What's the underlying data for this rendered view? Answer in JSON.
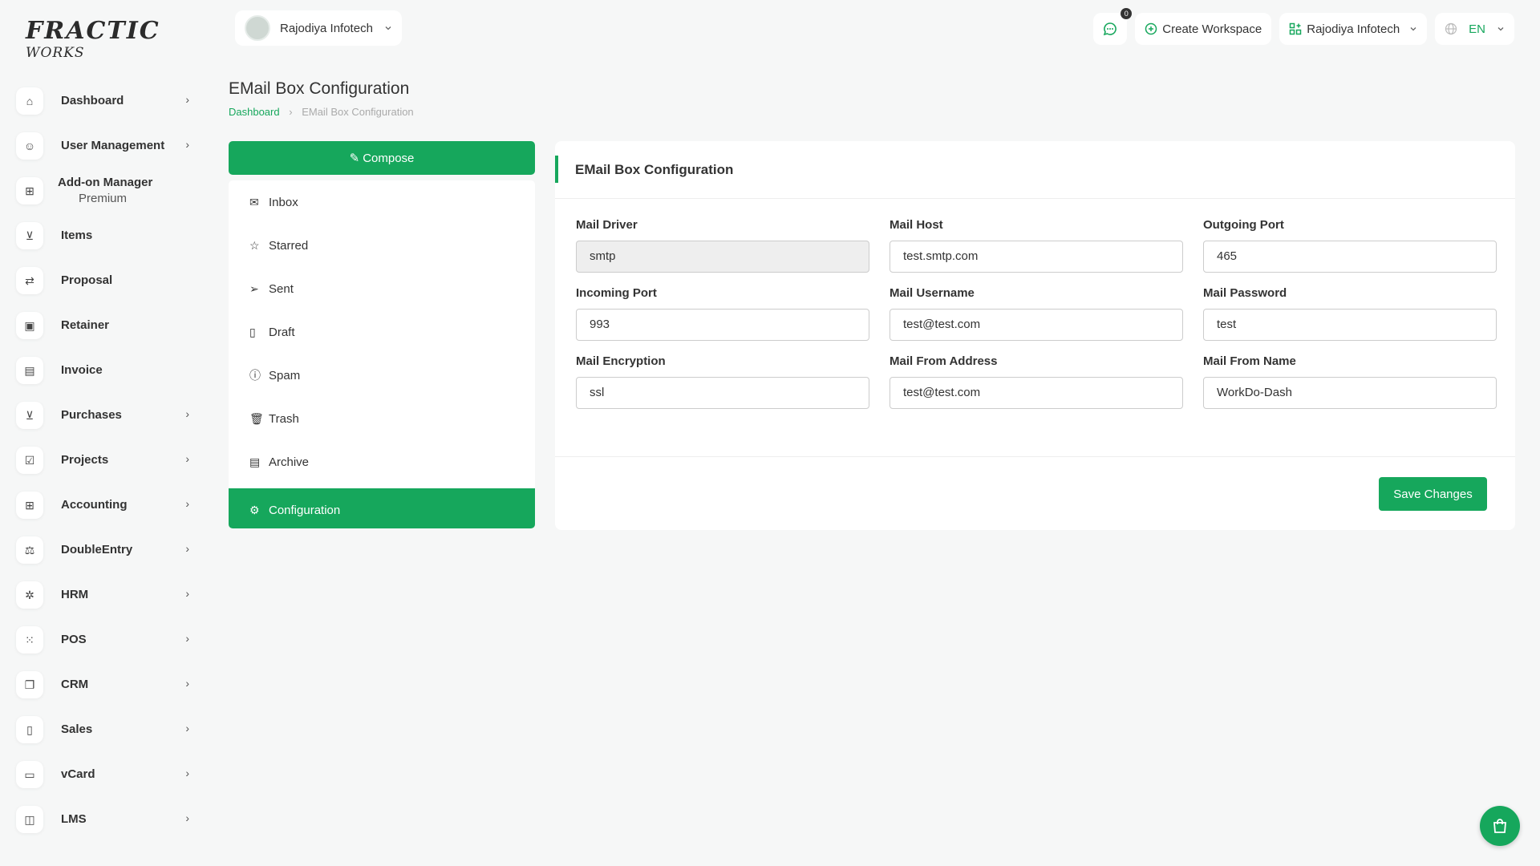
{
  "brand": {
    "logo_line1": "FRACTIC",
    "logo_line2": "WORKS",
    "accent": "#16a75c"
  },
  "header": {
    "workspace": "Rajodiya Infotech",
    "notification_count": "0",
    "create_workspace": "Create Workspace",
    "user": "Rajodiya Infotech",
    "language": "EN"
  },
  "sidebar": {
    "items": [
      {
        "label": "Dashboard",
        "icon": "home-icon",
        "chevron": true
      },
      {
        "label": "User Management",
        "icon": "users-icon",
        "chevron": true
      },
      {
        "label": "Add-on Manager",
        "sub": "Premium",
        "icon": "grid-icon",
        "chevron": false
      },
      {
        "label": "Items",
        "icon": "cart-icon",
        "chevron": false
      },
      {
        "label": "Proposal",
        "icon": "proposal-icon",
        "chevron": false
      },
      {
        "label": "Retainer",
        "icon": "retainer-icon",
        "chevron": false
      },
      {
        "label": "Invoice",
        "icon": "invoice-icon",
        "chevron": false
      },
      {
        "label": "Purchases",
        "icon": "cart-icon",
        "chevron": true
      },
      {
        "label": "Projects",
        "icon": "check-square-icon",
        "chevron": true
      },
      {
        "label": "Accounting",
        "icon": "grid-icon",
        "chevron": true
      },
      {
        "label": "DoubleEntry",
        "icon": "scale-icon",
        "chevron": true
      },
      {
        "label": "HRM",
        "icon": "hrm-icon",
        "chevron": true
      },
      {
        "label": "POS",
        "icon": "dots-grid-icon",
        "chevron": true
      },
      {
        "label": "CRM",
        "icon": "crm-icon",
        "chevron": true
      },
      {
        "label": "Sales",
        "icon": "file-icon",
        "chevron": true
      },
      {
        "label": "vCard",
        "icon": "card-icon",
        "chevron": true
      },
      {
        "label": "LMS",
        "icon": "book-icon",
        "chevron": true
      }
    ]
  },
  "page": {
    "title": "EMail Box Configuration",
    "breadcrumb": [
      "Dashboard",
      "EMail Box Configuration"
    ]
  },
  "mail": {
    "compose": "Compose",
    "folders": [
      {
        "label": "Inbox",
        "icon": "inbox-icon",
        "glyph": "✉"
      },
      {
        "label": "Starred",
        "icon": "star-icon",
        "glyph": "☆"
      },
      {
        "label": "Sent",
        "icon": "send-icon",
        "glyph": "➢"
      },
      {
        "label": "Draft",
        "icon": "file-icon",
        "glyph": "▯"
      },
      {
        "label": "Spam",
        "icon": "alert-circle-icon",
        "glyph": "ⓘ"
      },
      {
        "label": "Trash",
        "icon": "trash-icon",
        "glyph": "🗑"
      },
      {
        "label": "Archive",
        "icon": "archive-icon",
        "glyph": "▤"
      },
      {
        "label": "Configuration",
        "icon": "gear-icon",
        "glyph": "⚙",
        "active": true
      }
    ]
  },
  "config": {
    "title": "EMail Box Configuration",
    "fields": [
      {
        "label": "Mail Driver",
        "value": "smtp",
        "readonly": true
      },
      {
        "label": "Mail Host",
        "value": "test.smtp.com"
      },
      {
        "label": "Outgoing Port",
        "value": "465"
      },
      {
        "label": "Incoming Port",
        "value": "993"
      },
      {
        "label": "Mail Username",
        "value": "test@test.com"
      },
      {
        "label": "Mail Password",
        "value": "test"
      },
      {
        "label": "Mail Encryption",
        "value": "ssl"
      },
      {
        "label": "Mail From Address",
        "value": "test@test.com"
      },
      {
        "label": "Mail From Name",
        "value": "WorkDo-Dash"
      }
    ],
    "save": "Save Changes"
  }
}
